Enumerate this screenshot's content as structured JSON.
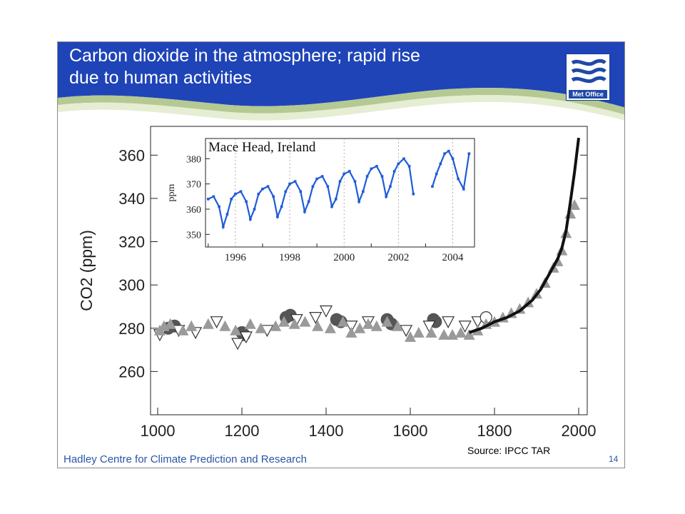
{
  "slide": {
    "title": "Carbon dioxide in the atmosphere; rapid rise\ndue to human activities",
    "footer": "Hadley Centre for Climate Prediction and Research",
    "source": "Source: IPCC TAR",
    "page_number": "14",
    "logo_text": "Met Office"
  },
  "colors": {
    "banner": "#1f44b8",
    "banner_wave": "#a8c080",
    "footer_text": "#2a55a8",
    "inset_line": "#1f5bd8",
    "dark_marker": "#555555",
    "light_marker": "#9a9a9a",
    "instrument_line": "#111111"
  },
  "chart_data": [
    {
      "type": "scatter",
      "title": "",
      "xlabel": "",
      "ylabel": "CO2 (ppm)",
      "xlim": [
        1000,
        2000
      ],
      "ylim": [
        240,
        370
      ],
      "x_ticks": [
        "1000",
        "1200",
        "1400",
        "1600",
        "1800",
        "2000"
      ],
      "y_ticks": [
        "260",
        "280",
        "300",
        "320",
        "340",
        "360"
      ],
      "grid": false,
      "series": [
        {
          "marker": "circle",
          "points": [
            [
              1025,
              280
            ],
            [
              1040,
              281
            ],
            [
              1200,
              278
            ],
            [
              1205,
              277
            ],
            [
              1305,
              285
            ],
            [
              1315,
              286
            ],
            [
              1425,
              284
            ],
            [
              1435,
              283
            ],
            [
              1545,
              284
            ],
            [
              1555,
              282
            ],
            [
              1655,
              284
            ],
            [
              1660,
              283
            ]
          ]
        },
        {
          "marker": "triangle-down",
          "points": [
            [
              1005,
              277
            ],
            [
              1050,
              279
            ],
            [
              1090,
              278
            ],
            [
              1140,
              283
            ],
            [
              1190,
              273
            ],
            [
              1210,
              276
            ],
            [
              1260,
              279
            ],
            [
              1330,
              284
            ],
            [
              1375,
              285
            ],
            [
              1400,
              288
            ],
            [
              1460,
              281
            ],
            [
              1500,
              283
            ],
            [
              1590,
              279
            ],
            [
              1645,
              281
            ],
            [
              1690,
              283
            ],
            [
              1730,
              281
            ],
            [
              1760,
              283
            ]
          ]
        },
        {
          "marker": "open-circle",
          "points": [
            [
              1780,
              285
            ]
          ]
        },
        {
          "marker": "triangle-up",
          "points": [
            [
              1005,
              279
            ],
            [
              1015,
              281
            ],
            [
              1030,
              282
            ],
            [
              1060,
              279
            ],
            [
              1080,
              281
            ],
            [
              1120,
              282
            ],
            [
              1160,
              281
            ],
            [
              1185,
              279
            ],
            [
              1220,
              282
            ],
            [
              1245,
              280
            ],
            [
              1280,
              281
            ],
            [
              1300,
              283
            ],
            [
              1325,
              282
            ],
            [
              1350,
              283
            ],
            [
              1380,
              281
            ],
            [
              1410,
              280
            ],
            [
              1440,
              283
            ],
            [
              1460,
              278
            ],
            [
              1480,
              280
            ],
            [
              1500,
              282
            ],
            [
              1520,
              281
            ],
            [
              1545,
              283
            ],
            [
              1570,
              281
            ],
            [
              1600,
              276
            ],
            [
              1620,
              278
            ],
            [
              1650,
              278
            ],
            [
              1680,
              277
            ],
            [
              1700,
              277
            ],
            [
              1720,
              278
            ],
            [
              1740,
              277
            ],
            [
              1760,
              279
            ],
            [
              1780,
              282
            ],
            [
              1800,
              283
            ],
            [
              1820,
              285
            ],
            [
              1840,
              287
            ],
            [
              1860,
              289
            ],
            [
              1880,
              292
            ],
            [
              1900,
              296
            ],
            [
              1920,
              301
            ],
            [
              1940,
              308
            ],
            [
              1950,
              311
            ],
            [
              1960,
              316
            ],
            [
              1970,
              324
            ],
            [
              1980,
              333
            ],
            [
              1990,
              337
            ]
          ]
        },
        {
          "marker": "line",
          "points": [
            [
              1740,
              278
            ],
            [
              1770,
              280
            ],
            [
              1800,
              283
            ],
            [
              1830,
              285
            ],
            [
              1860,
              288
            ],
            [
              1890,
              293
            ],
            [
              1910,
              298
            ],
            [
              1930,
              305
            ],
            [
              1950,
              312
            ],
            [
              1960,
              317
            ],
            [
              1970,
              325
            ],
            [
              1980,
              338
            ],
            [
              1990,
              352
            ],
            [
              2000,
              368
            ]
          ]
        }
      ]
    },
    {
      "type": "line",
      "title": "Mace Head, Ireland",
      "xlabel": "",
      "ylabel": "ppm",
      "xlim": [
        1994.9,
        2004.8
      ],
      "ylim": [
        345,
        388
      ],
      "x_ticks": [
        "1996",
        "1998",
        "2000",
        "2002",
        "2004"
      ],
      "y_ticks": [
        "350",
        "360",
        "370",
        "380"
      ],
      "grid": true,
      "x": [
        1995.0,
        1995.2,
        1995.4,
        1995.55,
        1995.7,
        1995.85,
        1996.0,
        1996.2,
        1996.4,
        1996.55,
        1996.7,
        1996.85,
        1997.0,
        1997.2,
        1997.4,
        1997.55,
        1997.7,
        1997.85,
        1998.0,
        1998.2,
        1998.4,
        1998.55,
        1998.7,
        1998.85,
        1999.0,
        1999.2,
        1999.4,
        1999.55,
        1999.7,
        1999.85,
        2000.0,
        2000.2,
        2000.4,
        2000.55,
        2000.7,
        2000.85,
        2001.0,
        2001.2,
        2001.4,
        2001.55,
        2001.7,
        2001.85,
        2002.0,
        2002.2,
        2002.4,
        2002.55,
        2002.7,
        2002.85,
        2003.0,
        2003.25,
        2003.4,
        2003.55,
        2003.7,
        2003.85,
        2004.0,
        2004.2,
        2004.4,
        2004.6
      ],
      "series": [
        {
          "values": [
            364,
            365,
            361,
            353,
            358,
            364,
            366,
            367,
            363,
            356,
            360,
            366,
            368,
            369,
            365,
            357,
            361,
            367,
            370,
            371,
            367,
            359,
            363,
            369,
            372,
            373,
            369,
            361,
            364,
            371,
            374,
            375,
            371,
            363,
            367,
            373,
            376,
            377,
            373,
            365,
            369,
            375,
            378,
            380,
            377,
            366,
            null,
            null,
            null,
            369,
            374,
            378,
            382,
            383,
            380,
            372,
            368,
            382
          ]
        }
      ]
    }
  ]
}
